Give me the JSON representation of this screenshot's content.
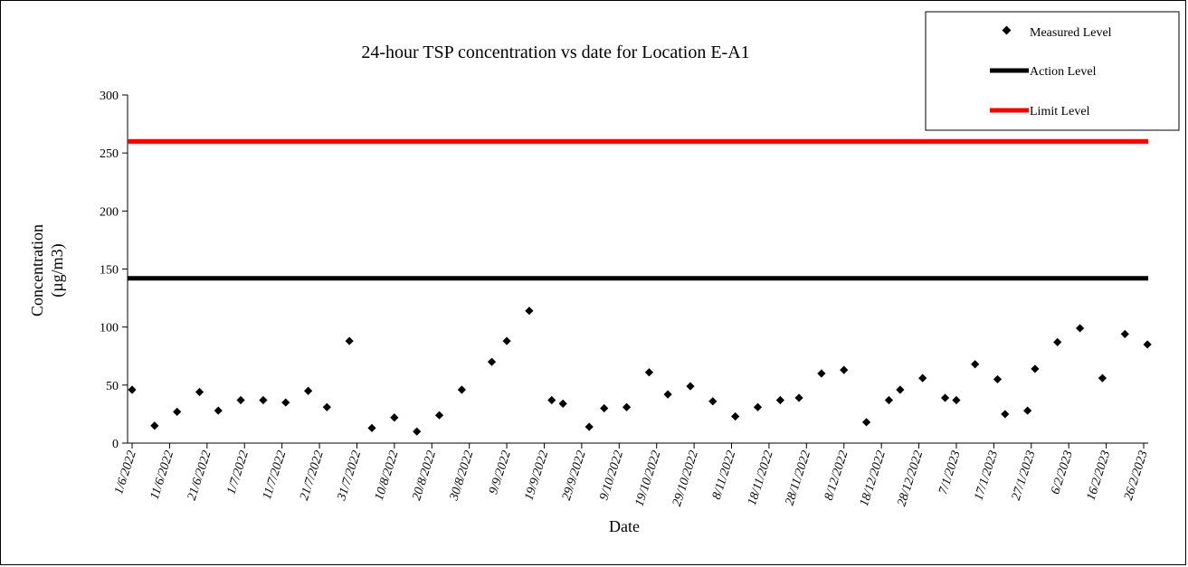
{
  "chart_data": {
    "type": "scatter",
    "title": "24-hour TSP concentration vs date for Location E-A1",
    "xlabel": "Date",
    "ylabel_line1": "Concentration",
    "ylabel_line2": "(µg/m3)",
    "ylim": [
      0,
      300
    ],
    "yticks": [
      0,
      50,
      100,
      150,
      200,
      250,
      300
    ],
    "xlim": [
      "2022-06-01",
      "2023-02-26"
    ],
    "xtick_labels": [
      "1/6/2022",
      "11/6/2022",
      "21/6/2022",
      "1/7/2022",
      "11/7/2022",
      "21/7/2022",
      "31/7/2022",
      "10/8/2022",
      "20/8/2022",
      "30/8/2022",
      "9/9/2022",
      "19/9/2022",
      "29/9/2022",
      "9/10/2022",
      "19/10/2022",
      "29/10/2022",
      "8/11/2022",
      "18/11/2022",
      "28/11/2022",
      "8/12/2022",
      "18/12/2022",
      "28/12/2022",
      "7/1/2023",
      "17/1/2023",
      "27/1/2023",
      "6/2/2023",
      "16/2/2023",
      "26/2/2023"
    ],
    "grid": false,
    "legend_position": "top-right",
    "legend": [
      "Measured Level",
      "Action Level",
      "Limit Level"
    ],
    "series": [
      {
        "name": "Measured Level",
        "type": "scatter",
        "marker": "diamond",
        "color": "#000000",
        "points": [
          [
            "2022-06-01",
            46
          ],
          [
            "2022-06-07",
            15
          ],
          [
            "2022-06-13",
            27
          ],
          [
            "2022-06-19",
            44
          ],
          [
            "2022-06-24",
            28
          ],
          [
            "2022-06-30",
            37
          ],
          [
            "2022-07-06",
            37
          ],
          [
            "2022-07-12",
            35
          ],
          [
            "2022-07-18",
            45
          ],
          [
            "2022-07-23",
            31
          ],
          [
            "2022-07-29",
            88
          ],
          [
            "2022-08-04",
            13
          ],
          [
            "2022-08-10",
            22
          ],
          [
            "2022-08-16",
            10
          ],
          [
            "2022-08-22",
            24
          ],
          [
            "2022-08-28",
            46
          ],
          [
            "2022-09-05",
            70
          ],
          [
            "2022-09-09",
            88
          ],
          [
            "2022-09-15",
            114
          ],
          [
            "2022-09-21",
            37
          ],
          [
            "2022-09-24",
            34
          ],
          [
            "2022-10-01",
            14
          ],
          [
            "2022-10-05",
            30
          ],
          [
            "2022-10-11",
            31
          ],
          [
            "2022-10-17",
            61
          ],
          [
            "2022-10-22",
            42
          ],
          [
            "2022-10-28",
            49
          ],
          [
            "2022-11-03",
            36
          ],
          [
            "2022-11-09",
            23
          ],
          [
            "2022-11-15",
            31
          ],
          [
            "2022-11-21",
            37
          ],
          [
            "2022-11-26",
            39
          ],
          [
            "2022-12-02",
            60
          ],
          [
            "2022-12-08",
            63
          ],
          [
            "2022-12-14",
            18
          ],
          [
            "2022-12-20",
            37
          ],
          [
            "2022-12-23",
            46
          ],
          [
            "2022-12-29",
            56
          ],
          [
            "2023-01-04",
            39
          ],
          [
            "2023-01-07",
            37
          ],
          [
            "2023-01-12",
            68
          ],
          [
            "2023-01-18",
            55
          ],
          [
            "2023-01-20",
            25
          ],
          [
            "2023-01-26",
            28
          ],
          [
            "2023-01-28",
            64
          ],
          [
            "2023-02-03",
            87
          ],
          [
            "2023-02-09",
            99
          ],
          [
            "2023-02-15",
            56
          ],
          [
            "2023-02-21",
            94
          ],
          [
            "2023-02-27",
            85
          ]
        ]
      },
      {
        "name": "Action Level",
        "type": "line",
        "color": "#000000",
        "value": 142
      },
      {
        "name": "Limit Level",
        "type": "line",
        "color": "#ff0000",
        "value": 260
      }
    ]
  }
}
